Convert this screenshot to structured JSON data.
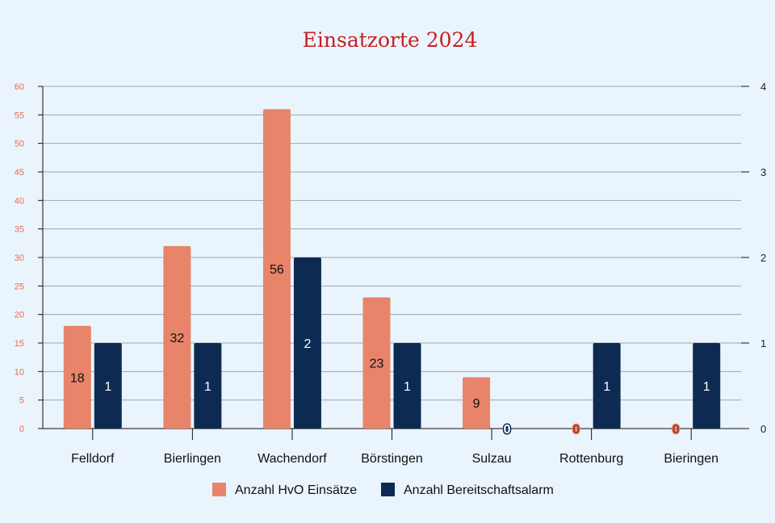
{
  "chart_data": {
    "type": "bar",
    "title": "Einsatzorte 2024",
    "categories": [
      "Felldorf",
      "Bierlingen",
      "Wachendorf",
      "Börstingen",
      "Sulzau",
      "Rottenburg",
      "Bieringen"
    ],
    "series": [
      {
        "name": "Anzahl HvO Einsätze",
        "values": [
          18,
          32,
          56,
          23,
          9,
          0,
          0
        ],
        "color": "#e8846a",
        "axis": "left"
      },
      {
        "name": "Anzahl Bereitschaftsalarm",
        "values": [
          1,
          1,
          2,
          1,
          0,
          1,
          1
        ],
        "color": "#0d2b52",
        "axis": "right"
      }
    ],
    "y_left": {
      "min": 0,
      "max": 60,
      "step": 5,
      "tick_color": "#e36f4f"
    },
    "y_right": {
      "min": 0,
      "max": 4,
      "step": 1
    },
    "grid": true,
    "legend": "bottom"
  }
}
